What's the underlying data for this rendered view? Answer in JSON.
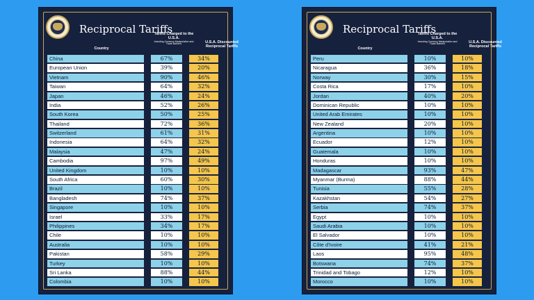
{
  "title": "Reciprocal Tariffs",
  "headers": {
    "country": "Country",
    "charged": "Tariffs Charged to the U.S.A.",
    "charged_note": "Including Currency Manipulation and Trade Barriers",
    "discounted": "U.S.A. Discounted Reciprocal Tariffs"
  },
  "left_table": [
    {
      "country": "China",
      "charged": "67%",
      "discounted": "34%"
    },
    {
      "country": "European Union",
      "charged": "39%",
      "discounted": "20%"
    },
    {
      "country": "Vietnam",
      "charged": "90%",
      "discounted": "46%"
    },
    {
      "country": "Taiwan",
      "charged": "64%",
      "discounted": "32%"
    },
    {
      "country": "Japan",
      "charged": "46%",
      "discounted": "24%"
    },
    {
      "country": "India",
      "charged": "52%",
      "discounted": "26%"
    },
    {
      "country": "South Korea",
      "charged": "50%",
      "discounted": "25%"
    },
    {
      "country": "Thailand",
      "charged": "72%",
      "discounted": "36%"
    },
    {
      "country": "Switzerland",
      "charged": "61%",
      "discounted": "31%"
    },
    {
      "country": "Indonesia",
      "charged": "64%",
      "discounted": "32%"
    },
    {
      "country": "Malaysia",
      "charged": "47%",
      "discounted": "24%"
    },
    {
      "country": "Cambodia",
      "charged": "97%",
      "discounted": "49%"
    },
    {
      "country": "United Kingdom",
      "charged": "10%",
      "discounted": "10%"
    },
    {
      "country": "South Africa",
      "charged": "60%",
      "discounted": "30%"
    },
    {
      "country": "Brazil",
      "charged": "10%",
      "discounted": "10%"
    },
    {
      "country": "Bangladesh",
      "charged": "74%",
      "discounted": "37%"
    },
    {
      "country": "Singapore",
      "charged": "10%",
      "discounted": "10%"
    },
    {
      "country": "Israel",
      "charged": "33%",
      "discounted": "17%"
    },
    {
      "country": "Philippines",
      "charged": "34%",
      "discounted": "17%"
    },
    {
      "country": "Chile",
      "charged": "10%",
      "discounted": "10%"
    },
    {
      "country": "Australia",
      "charged": "10%",
      "discounted": "10%"
    },
    {
      "country": "Pakistan",
      "charged": "58%",
      "discounted": "29%"
    },
    {
      "country": "Turkey",
      "charged": "10%",
      "discounted": "10%"
    },
    {
      "country": "Sri Lanka",
      "charged": "88%",
      "discounted": "44%"
    },
    {
      "country": "Colombia",
      "charged": "10%",
      "discounted": "10%"
    }
  ],
  "right_table": [
    {
      "country": "Peru",
      "charged": "10%",
      "discounted": "10%"
    },
    {
      "country": "Nicaragua",
      "charged": "36%",
      "discounted": "18%"
    },
    {
      "country": "Norway",
      "charged": "30%",
      "discounted": "15%"
    },
    {
      "country": "Costa Rica",
      "charged": "17%",
      "discounted": "10%"
    },
    {
      "country": "Jordan",
      "charged": "40%",
      "discounted": "20%"
    },
    {
      "country": "Dominican Republic",
      "charged": "10%",
      "discounted": "10%"
    },
    {
      "country": "United Arab Emirates",
      "charged": "10%",
      "discounted": "10%"
    },
    {
      "country": "New Zealand",
      "charged": "20%",
      "discounted": "10%"
    },
    {
      "country": "Argentina",
      "charged": "10%",
      "discounted": "10%"
    },
    {
      "country": "Ecuador",
      "charged": "12%",
      "discounted": "10%"
    },
    {
      "country": "Guatemala",
      "charged": "10%",
      "discounted": "10%"
    },
    {
      "country": "Honduras",
      "charged": "10%",
      "discounted": "10%"
    },
    {
      "country": "Madagascar",
      "charged": "93%",
      "discounted": "47%"
    },
    {
      "country": "Myanmar (Burma)",
      "charged": "88%",
      "discounted": "44%"
    },
    {
      "country": "Tunisia",
      "charged": "55%",
      "discounted": "28%"
    },
    {
      "country": "Kazakhstan",
      "charged": "54%",
      "discounted": "27%"
    },
    {
      "country": "Serbia",
      "charged": "74%",
      "discounted": "37%"
    },
    {
      "country": "Egypt",
      "charged": "10%",
      "discounted": "10%"
    },
    {
      "country": "Saudi Arabia",
      "charged": "10%",
      "discounted": "10%"
    },
    {
      "country": "El Salvador",
      "charged": "10%",
      "discounted": "10%"
    },
    {
      "country": "Côte d'Ivoire",
      "charged": "41%",
      "discounted": "21%"
    },
    {
      "country": "Laos",
      "charged": "95%",
      "discounted": "48%"
    },
    {
      "country": "Botswana",
      "charged": "74%",
      "discounted": "37%"
    },
    {
      "country": "Trinidad and Tobago",
      "charged": "12%",
      "discounted": "10%"
    },
    {
      "country": "Morocco",
      "charged": "10%",
      "discounted": "10%"
    }
  ],
  "colors": {
    "background": "#2d9bf0",
    "board": "#16213d",
    "row_light_blue": "#8ed2ea",
    "row_white": "#ffffff",
    "discount_yellow": "#f5c64b",
    "trim_gold": "#c9a95a"
  }
}
